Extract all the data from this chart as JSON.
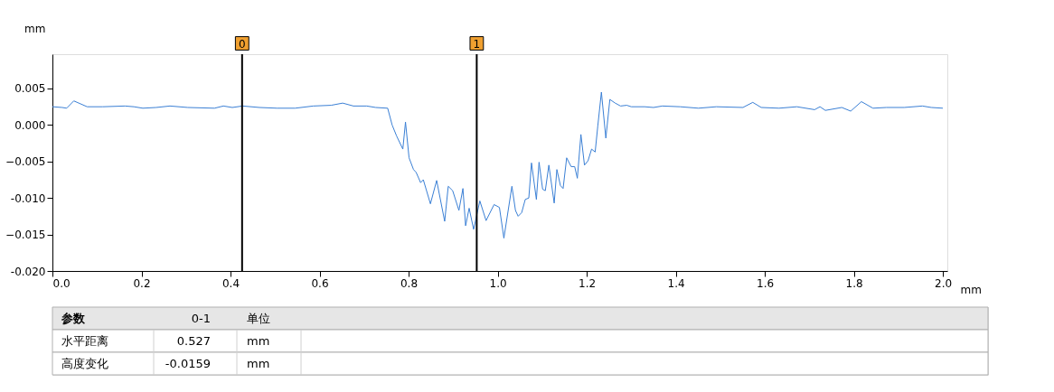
{
  "chart_data": {
    "type": "line",
    "xlabel": "mm",
    "ylabel": "mm",
    "x": [
      0.0,
      0.022,
      0.032,
      0.048,
      0.078,
      0.113,
      0.163,
      0.183,
      0.203,
      0.233,
      0.264,
      0.304,
      0.364,
      0.384,
      0.404,
      0.427,
      0.465,
      0.505,
      0.545,
      0.586,
      0.626,
      0.652,
      0.676,
      0.706,
      0.726,
      0.753,
      0.763,
      0.773,
      0.787,
      0.793,
      0.801,
      0.811,
      0.817,
      0.827,
      0.833,
      0.849,
      0.863,
      0.881,
      0.889,
      0.899,
      0.913,
      0.922,
      0.928,
      0.936,
      0.946,
      0.96,
      0.974,
      0.992,
      1.004,
      1.014,
      1.032,
      1.04,
      1.046,
      1.054,
      1.062,
      1.07,
      1.076,
      1.087,
      1.093,
      1.101,
      1.107,
      1.115,
      1.127,
      1.133,
      1.141,
      1.147,
      1.155,
      1.165,
      1.173,
      1.179,
      1.187,
      1.195,
      1.203,
      1.211,
      1.219,
      1.225,
      1.233,
      1.243,
      1.252,
      1.264,
      1.276,
      1.29,
      1.3,
      1.33,
      1.35,
      1.37,
      1.41,
      1.451,
      1.491,
      1.551,
      1.573,
      1.592,
      1.632,
      1.672,
      1.712,
      1.724,
      1.736,
      1.773,
      1.793,
      1.817,
      1.843,
      1.873,
      1.913,
      1.954,
      1.974,
      2.0
    ],
    "series": [
      {
        "color": "#3a7fd5",
        "values": [
          0.0025,
          0.0024,
          0.0023,
          0.0033,
          0.0025,
          0.0025,
          0.0026,
          0.0025,
          0.0023,
          0.0024,
          0.0026,
          0.0024,
          0.0023,
          0.0026,
          0.0024,
          0.0026,
          0.0024,
          0.0023,
          0.0023,
          0.0026,
          0.0027,
          0.003,
          0.0026,
          0.0026,
          0.0024,
          0.0023,
          0.0,
          -0.0015,
          -0.0033,
          0.0004,
          -0.0045,
          -0.0061,
          -0.0065,
          -0.0079,
          -0.0075,
          -0.0108,
          -0.0076,
          -0.0132,
          -0.0084,
          -0.009,
          -0.0117,
          -0.0087,
          -0.0138,
          -0.0114,
          -0.0143,
          -0.0104,
          -0.0131,
          -0.0109,
          -0.0113,
          -0.0155,
          -0.0084,
          -0.0117,
          -0.0125,
          -0.012,
          -0.0102,
          -0.01,
          -0.0052,
          -0.0102,
          -0.0051,
          -0.0088,
          -0.009,
          -0.0055,
          -0.0107,
          -0.0061,
          -0.0083,
          -0.0087,
          -0.0045,
          -0.0057,
          -0.0057,
          -0.0073,
          -0.0013,
          -0.0055,
          -0.0049,
          -0.0033,
          -0.0037,
          -0.0001,
          0.0045,
          -0.0018,
          0.0035,
          0.003,
          0.0026,
          0.0027,
          0.0025,
          0.0025,
          0.0024,
          0.0026,
          0.0025,
          0.0023,
          0.0025,
          0.0024,
          0.0031,
          0.0024,
          0.0023,
          0.0025,
          0.0021,
          0.0025,
          0.002,
          0.0024,
          0.0019,
          0.0032,
          0.0023,
          0.0024,
          0.0024,
          0.0026,
          0.0024,
          0.0023
        ]
      }
    ],
    "xlim": [
      0,
      2.01
    ],
    "xticks": [
      {
        "value": 0,
        "label": "0.0"
      },
      0.2,
      0.4,
      0.6,
      0.8,
      {
        "value": 1,
        "label": "1.0"
      },
      1.2,
      1.4,
      1.6,
      1.8,
      {
        "value": 2,
        "label": "2.0"
      }
    ],
    "ylim": [
      -0.02,
      0.0097
    ],
    "yticks": [
      {
        "value": -0.02,
        "label": "-0.020"
      },
      -0.015,
      {
        "value": -0.01,
        "label": "-0.010"
      },
      -0.005,
      {
        "value": 0,
        "label": "0.000"
      },
      0.005
    ],
    "ref_lines": [
      {
        "axis": "x",
        "value": 0.426,
        "label": "0",
        "color": "#000000"
      },
      {
        "axis": "x",
        "value": 0.953,
        "label": "1",
        "color": "#000000"
      }
    ],
    "annotations": [
      "参数",
      "0-1",
      "单位",
      "水平距离",
      "0.527",
      "mm",
      "高度变化",
      "-0.0159",
      "mm"
    ],
    "grid": false
  }
}
